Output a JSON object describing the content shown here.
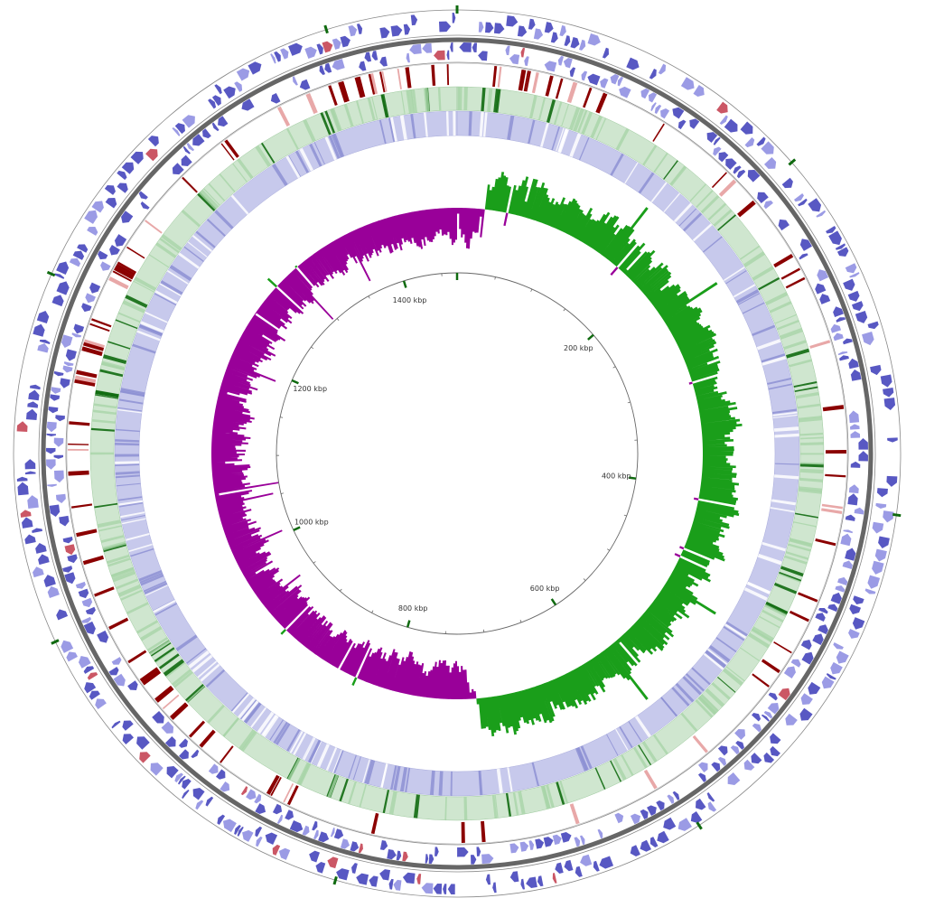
{
  "genome_map": {
    "scale_labels": [
      "200 kbp",
      "400 kbp",
      "600 kbp",
      "800 kbp",
      "1000 kbp",
      "1200 kbp",
      "1400 kbp"
    ],
    "scale_label_kbp": [
      200,
      400,
      600,
      800,
      1000,
      1200,
      1400
    ],
    "genome_length_kbp": 1470,
    "colors": {
      "cds": "#3b3bb8",
      "cds_light": "#8a8ae0",
      "rna": "#c23a4a",
      "blast_hit": "#8b0000",
      "gc_skew_positive": "#1a9e1a",
      "gc_skew_negative": "#990099",
      "green_band": "#cfe6cf",
      "green_mark": "#0f6a0f",
      "blue_band": "#c7c9ec",
      "backbone": "#666666"
    },
    "rings": [
      "forward-strand CDS",
      "reverse-strand CDS",
      "blast hits",
      "comparison ring (green)",
      "comparison ring (blue)",
      "GC skew",
      "scale ring"
    ]
  }
}
